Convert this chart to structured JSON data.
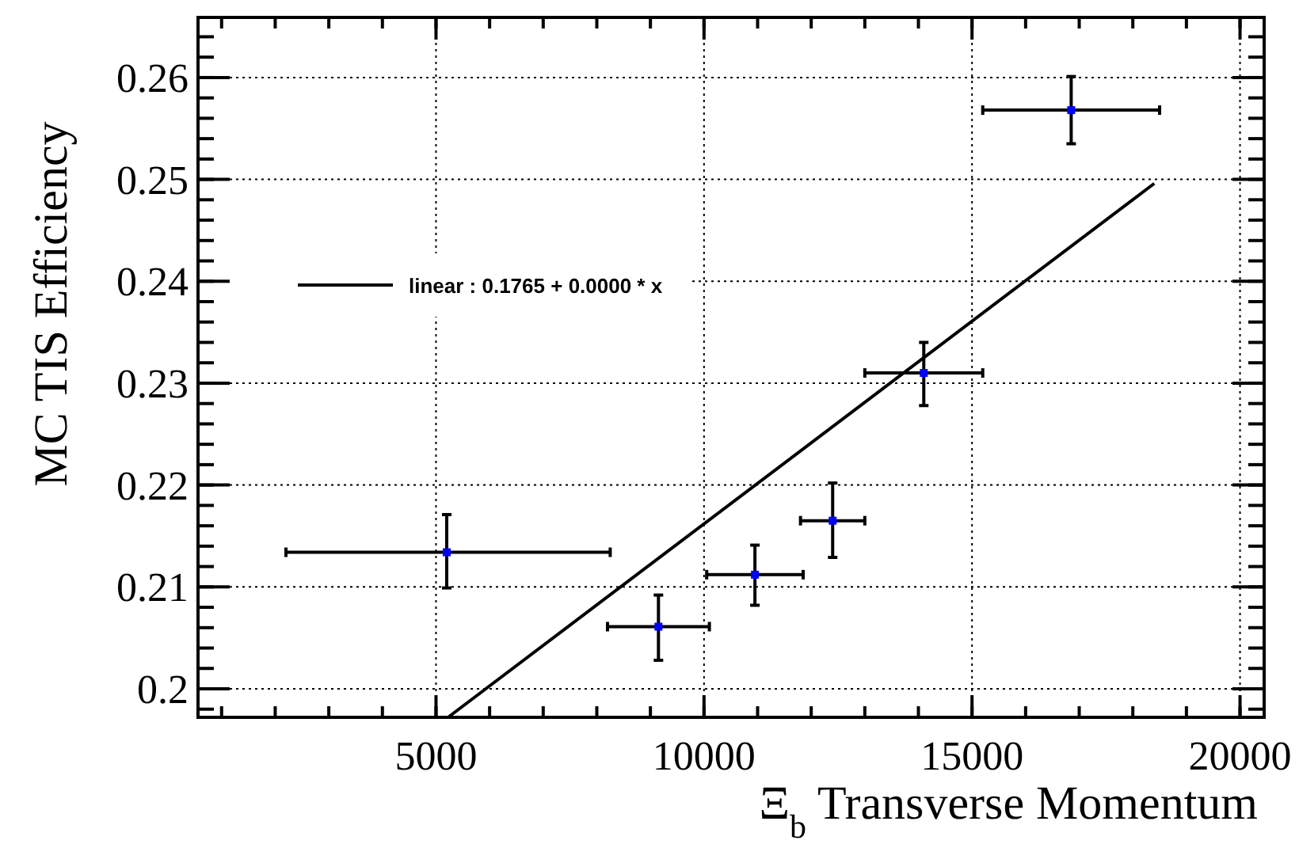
{
  "chart_data": {
    "type": "scatter",
    "xlabel": "Ξ$_{b}$ Transverse Momentum",
    "ylabel": "MC TIS Efficiency",
    "xlim": [
      560,
      20450
    ],
    "ylim": [
      0.1972,
      0.2659
    ],
    "xticks": [
      5000,
      10000,
      15000,
      20000
    ],
    "yticks": [
      0.2,
      0.21,
      0.22,
      0.23,
      0.24,
      0.25,
      0.26
    ],
    "grid": true,
    "legend": "left",
    "series": [
      {
        "marker": "square",
        "color": "#0000ff",
        "x": [
          5200,
          9150,
          10950,
          12400,
          14100,
          16850
        ],
        "values": [
          0.2134,
          0.2061,
          0.2112,
          0.2165,
          0.231,
          0.2568
        ],
        "errors": [
          [
            0.2099,
            0.2171
          ],
          [
            0.2028,
            0.2092
          ],
          [
            0.2082,
            0.2141
          ],
          [
            0.2129,
            0.2202
          ],
          [
            0.2278,
            0.234
          ],
          [
            0.2535,
            0.2601
          ]
        ],
        "xerrors": [
          [
            2200,
            8250
          ],
          [
            8200,
            10100
          ],
          [
            10050,
            11850
          ],
          [
            11800,
            13000
          ],
          [
            13000,
            15200
          ],
          [
            15200,
            18500
          ]
        ]
      },
      {
        "type": "line",
        "name": "linear : 0.1765 + 0.0000 * x",
        "color": "#000000",
        "line_style": "solid",
        "x": [
          5225,
          18400
        ],
        "values": [
          0.1972,
          0.2496
        ]
      }
    ]
  }
}
